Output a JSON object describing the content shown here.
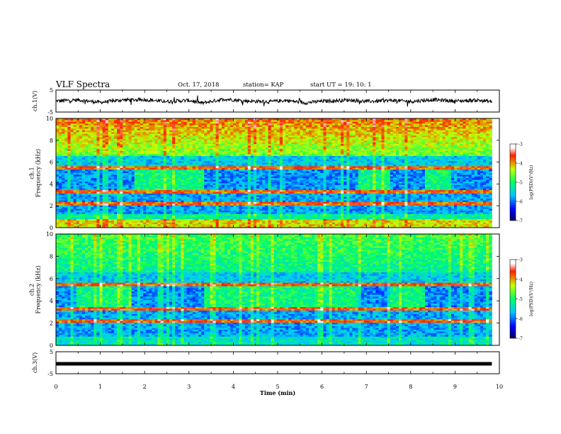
{
  "header": {
    "title": "VLF Spectra",
    "date": "Oct. 17, 2018",
    "station": "station= KAP",
    "start": "start  UT =    19: 10: 1"
  },
  "chart_data": [
    {
      "type": "line",
      "panel": "ch1-waveform",
      "ylabel": "ch.1(V)",
      "ylim": [
        -5,
        5
      ],
      "yticks": [
        -5,
        5
      ],
      "xlim": [
        0,
        10
      ],
      "x_coverage_min": [
        0,
        9.83
      ],
      "series": [
        {
          "color": "#000000",
          "description_values": [
            [
              0,
              0.0
            ],
            [
              0.5,
              0.5
            ],
            [
              1.0,
              -0.6
            ],
            [
              1.5,
              0.5
            ],
            [
              2.0,
              0.6
            ],
            [
              2.5,
              -0.2
            ],
            [
              3.0,
              0.3
            ],
            [
              3.3,
              -0.9
            ],
            [
              3.8,
              0.9
            ],
            [
              4.3,
              0.0
            ],
            [
              4.8,
              -0.3
            ],
            [
              5.2,
              0.3
            ],
            [
              5.6,
              -0.8
            ],
            [
              6.0,
              -0.1
            ],
            [
              6.6,
              0.5
            ],
            [
              7.0,
              -0.2
            ],
            [
              7.6,
              0.3
            ],
            [
              8.0,
              -0.2
            ],
            [
              8.5,
              0.6
            ],
            [
              9.0,
              0.0
            ],
            [
              9.5,
              0.4
            ],
            [
              9.83,
              -0.3
            ]
          ]
        }
      ]
    },
    {
      "type": "heatmap",
      "panel": "ch1-spectrogram",
      "ylabel": "ch.1\nFrequency  (kHz)",
      "ylim": [
        0,
        10
      ],
      "yticks": [
        0,
        2,
        4,
        6,
        8,
        10
      ],
      "xlim": [
        0,
        10
      ],
      "colorbar": {
        "label": "log(PSD)(V²/Hz)",
        "range": [
          -7,
          -3
        ],
        "ticks": [
          -3,
          -4,
          -5,
          -6,
          -7
        ]
      }
    },
    {
      "type": "heatmap",
      "panel": "ch2-spectrogram",
      "ylabel": "ch.2\nFrequency  (kHz)",
      "ylim": [
        0,
        10
      ],
      "yticks": [
        0,
        2,
        4,
        6,
        8,
        10
      ],
      "xlim": [
        0,
        10
      ],
      "colorbar": {
        "label": "log(PSD)(V²/Hz)",
        "range": [
          -7,
          -3
        ],
        "ticks": [
          -3,
          -4,
          -5,
          -6,
          -7
        ]
      }
    },
    {
      "type": "line",
      "panel": "ch3-waveform",
      "ylabel": "ch.3(V)",
      "ylim": [
        -5,
        5
      ],
      "yticks": [
        -5,
        5
      ],
      "xlim": [
        0,
        10
      ],
      "series": [
        {
          "color": "#000000",
          "description_values": [
            [
              0,
              -0.5
            ],
            [
              9.83,
              -0.5
            ]
          ]
        }
      ]
    }
  ],
  "xaxis": {
    "label": "Time  (min)",
    "ticks": [
      "0",
      "1",
      "2",
      "3",
      "4",
      "5",
      "6",
      "7",
      "8",
      "9",
      "10"
    ]
  }
}
